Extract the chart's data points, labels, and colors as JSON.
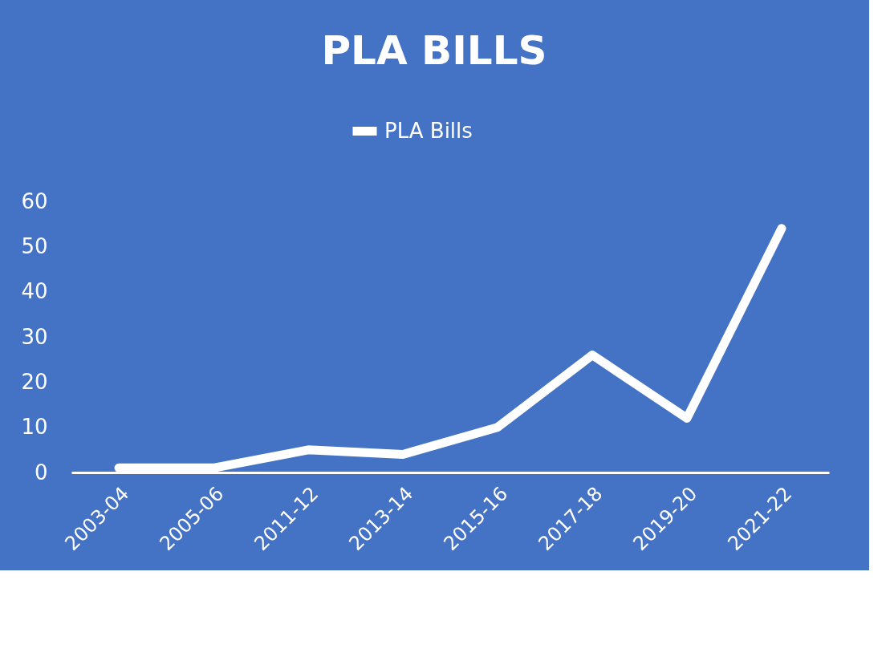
{
  "chart_data": {
    "type": "line",
    "title": "PLA BILLS",
    "categories": [
      "2003-04",
      "2005-06",
      "2011-12",
      "2013-14",
      "2015-16",
      "2017-18",
      "2019-20",
      "2021-22"
    ],
    "series": [
      {
        "name": "PLA Bills",
        "color": "#ffffff",
        "values": [
          1,
          1,
          5,
          4,
          10,
          26,
          12,
          54
        ]
      }
    ],
    "ylim": [
      0,
      60
    ],
    "yticks": [
      0,
      10,
      20,
      30,
      40,
      50,
      60
    ],
    "grid": false,
    "legend": "top",
    "line_style": "solid"
  }
}
